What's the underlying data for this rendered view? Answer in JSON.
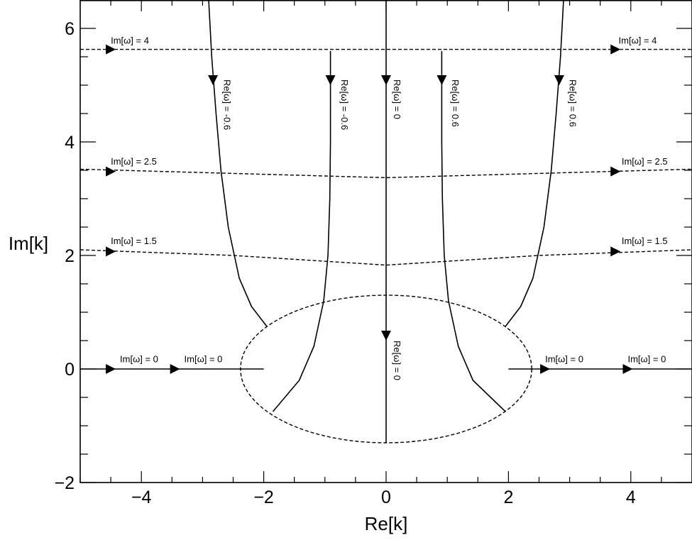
{
  "chart_data": {
    "type": "line",
    "xlabel": "Re[k]",
    "ylabel": "Im[k]",
    "xlim": [
      -5,
      5
    ],
    "ylim": [
      -2,
      6.5
    ],
    "grid": false,
    "x_ticks": [
      {
        "value": -4,
        "label": "−4"
      },
      {
        "value": -2,
        "label": "−2"
      },
      {
        "value": 0,
        "label": "0"
      },
      {
        "value": 2,
        "label": "2"
      },
      {
        "value": 4,
        "label": "4"
      }
    ],
    "y_ticks": [
      {
        "value": -2,
        "label": "−2"
      },
      {
        "value": 0,
        "label": "0"
      },
      {
        "value": 2,
        "label": "2"
      },
      {
        "value": 4,
        "label": "4"
      },
      {
        "value": 6,
        "label": "6"
      }
    ],
    "series": [
      {
        "style": "solid",
        "points": [
          [
            -2.9,
            6.5
          ],
          [
            -2.85,
            5.5
          ],
          [
            -2.78,
            4.5
          ],
          [
            -2.7,
            3.5
          ],
          [
            -2.58,
            2.5
          ],
          [
            -2.4,
            1.6
          ],
          [
            -2.2,
            1.1
          ],
          [
            -1.95,
            0.75
          ]
        ]
      },
      {
        "style": "solid",
        "points": [
          [
            2.9,
            6.5
          ],
          [
            2.85,
            5.5
          ],
          [
            2.78,
            4.5
          ],
          [
            2.7,
            3.5
          ],
          [
            2.58,
            2.5
          ],
          [
            2.4,
            1.6
          ],
          [
            2.2,
            1.1
          ],
          [
            1.95,
            0.75
          ]
        ]
      },
      {
        "style": "solid",
        "points": [
          [
            -0.91,
            5.6
          ],
          [
            -0.91,
            4.0
          ],
          [
            -0.92,
            3.0
          ],
          [
            -0.95,
            2.0
          ],
          [
            -1.02,
            1.2
          ],
          [
            -1.18,
            0.4
          ],
          [
            -1.42,
            -0.2
          ],
          [
            -1.85,
            -0.75
          ]
        ]
      },
      {
        "style": "solid",
        "points": [
          [
            0.91,
            5.6
          ],
          [
            0.91,
            4.0
          ],
          [
            0.92,
            3.0
          ],
          [
            0.95,
            2.0
          ],
          [
            1.02,
            1.2
          ],
          [
            1.18,
            0.4
          ],
          [
            1.42,
            -0.2
          ],
          [
            1.95,
            -0.75
          ]
        ]
      },
      {
        "style": "solid",
        "points": [
          [
            0,
            6.5
          ],
          [
            0,
            -1.3
          ]
        ]
      },
      {
        "style": "solid",
        "points": [
          [
            -5,
            0
          ],
          [
            -2,
            0
          ]
        ]
      },
      {
        "style": "solid",
        "points": [
          [
            2,
            0
          ],
          [
            5,
            0
          ]
        ]
      },
      {
        "style": "dashed",
        "points": [
          [
            -5,
            5.63
          ],
          [
            5,
            5.63
          ]
        ]
      },
      {
        "style": "dashed",
        "points": [
          [
            -5,
            3.52
          ],
          [
            0,
            3.37
          ],
          [
            5,
            3.52
          ]
        ]
      },
      {
        "style": "dashed",
        "points": [
          [
            -5,
            2.1
          ],
          [
            -2.5,
            2.0
          ],
          [
            0,
            1.83
          ],
          [
            2.5,
            2.0
          ],
          [
            5,
            2.1
          ]
        ]
      }
    ],
    "ellipse": {
      "center": [
        0,
        0
      ],
      "rx": 2.38,
      "ry": 1.3,
      "style": "dashed"
    },
    "arrows": [
      {
        "x": -2.83,
        "y": 5.0,
        "dir": "down"
      },
      {
        "x": -0.91,
        "y": 5.0,
        "dir": "down"
      },
      {
        "x": 0,
        "y": 5.0,
        "dir": "down"
      },
      {
        "x": 0.91,
        "y": 5.0,
        "dir": "down"
      },
      {
        "x": 2.83,
        "y": 5.0,
        "dir": "down"
      },
      {
        "x": 0,
        "y": 0.5,
        "dir": "down"
      },
      {
        "x": -4.5,
        "y": 5.63,
        "dir": "right"
      },
      {
        "x": 3.75,
        "y": 5.63,
        "dir": "right"
      },
      {
        "x": -4.5,
        "y": 3.48,
        "dir": "right"
      },
      {
        "x": 3.75,
        "y": 3.48,
        "dir": "right"
      },
      {
        "x": -4.5,
        "y": 2.07,
        "dir": "right"
      },
      {
        "x": 3.75,
        "y": 2.07,
        "dir": "right"
      },
      {
        "x": -4.5,
        "y": 0,
        "dir": "right"
      },
      {
        "x": -3.45,
        "y": 0,
        "dir": "right"
      },
      {
        "x": 2.6,
        "y": 0,
        "dir": "right"
      },
      {
        "x": 3.95,
        "y": 0,
        "dir": "right"
      }
    ],
    "annotations": [
      {
        "text": "Im[ω] = 4",
        "x": -4.5,
        "y": 5.73,
        "rotate": 0
      },
      {
        "text": "Im[ω] = 4",
        "x": 3.8,
        "y": 5.73,
        "rotate": 0
      },
      {
        "text": "Im[ω] = 2.5",
        "x": -4.5,
        "y": 3.6,
        "rotate": 0
      },
      {
        "text": "Im[ω] = 2.5",
        "x": 3.85,
        "y": 3.6,
        "rotate": 0
      },
      {
        "text": "Im[ω] = 1.5",
        "x": -4.5,
        "y": 2.2,
        "rotate": 0
      },
      {
        "text": "Im[ω] = 1.5",
        "x": 3.85,
        "y": 2.2,
        "rotate": 0
      },
      {
        "text": "Im[ω] = 0",
        "x": -4.35,
        "y": 0.12,
        "rotate": 0
      },
      {
        "text": "Im[ω] = 0",
        "x": -3.3,
        "y": 0.12,
        "rotate": 0
      },
      {
        "text": "Im[ω] = 0",
        "x": 2.6,
        "y": 0.12,
        "rotate": 0
      },
      {
        "text": "Im[ω] = 0",
        "x": 3.95,
        "y": 0.12,
        "rotate": 0
      },
      {
        "text": "Re[ω] = -0.6",
        "x": -2.65,
        "y": 5.1,
        "rotate": 90
      },
      {
        "text": "Re[ω] = -0.6",
        "x": -0.73,
        "y": 5.1,
        "rotate": 90
      },
      {
        "text": "Re[ω] = 0",
        "x": 0.13,
        "y": 5.1,
        "rotate": 90
      },
      {
        "text": "Re[ω] = 0.6",
        "x": 1.08,
        "y": 5.1,
        "rotate": 90
      },
      {
        "text": "Re[ω] = 0.6",
        "x": 3.0,
        "y": 5.1,
        "rotate": 90
      },
      {
        "text": "Re[ω] = 0",
        "x": 0.13,
        "y": 0.5,
        "rotate": 90
      }
    ]
  }
}
